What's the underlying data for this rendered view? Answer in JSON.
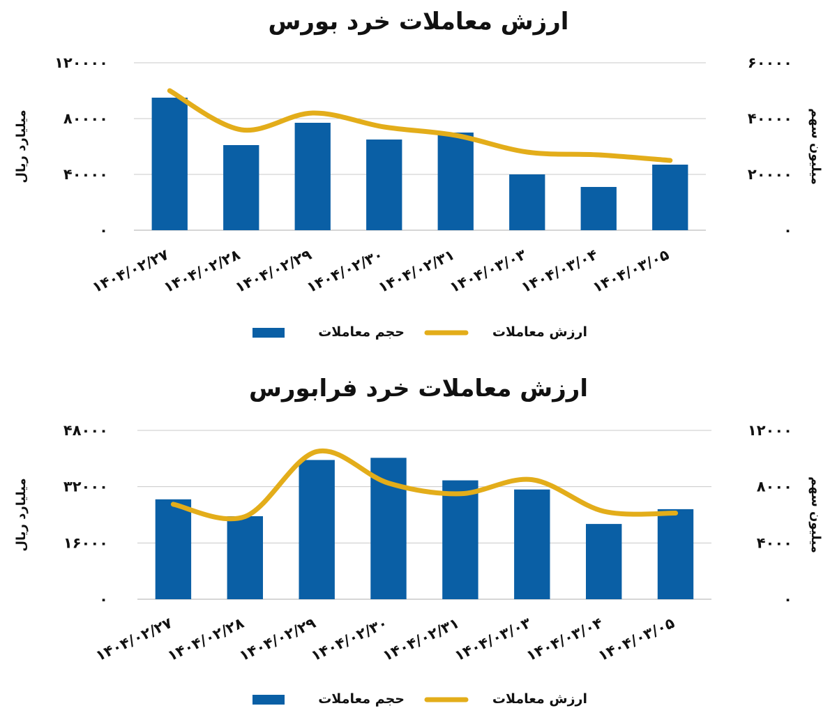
{
  "chart_data": [
    {
      "type": "bar",
      "title": "ارزش معاملات خرد بورس",
      "xlabel": "",
      "ylabel_left": "میلیارد ریال",
      "ylabel_right": "میلیون سهم",
      "categories": [
        "۱۴۰۴/۰۲/۲۷",
        "۱۴۰۴/۰۲/۲۸",
        "۱۴۰۴/۰۲/۲۹",
        "۱۴۰۴/۰۲/۳۰",
        "۱۴۰۴/۰۲/۳۱",
        "۱۴۰۴/۰۳/۰۳",
        "۱۴۰۴/۰۳/۰۴",
        "۱۴۰۴/۰۳/۰۵"
      ],
      "ylim_left": [
        0,
        120000
      ],
      "ylim_right": [
        0,
        60000
      ],
      "yticks_left": [
        "۰",
        "۴۰۰۰۰",
        "۸۰۰۰۰",
        "۱۲۰۰۰۰"
      ],
      "yticks_right": [
        "۰",
        "۲۰۰۰۰",
        "۴۰۰۰۰",
        "۶۰۰۰۰"
      ],
      "grid": true,
      "legend_position": "bottom",
      "colors": {
        "bar": "#0a5fa5",
        "line": "#e3ad1a"
      },
      "series": [
        {
          "name": "حجم معاملات",
          "type": "bar",
          "axis": "right",
          "values": [
            47500,
            30500,
            38500,
            32500,
            35000,
            20000,
            15500,
            23500
          ]
        },
        {
          "name": "ارزش معاملات",
          "type": "line",
          "axis": "left",
          "values": [
            100000,
            72000,
            84000,
            74000,
            68000,
            56000,
            54000,
            50000
          ]
        }
      ]
    },
    {
      "type": "bar",
      "title": "ارزش معاملات خرد فرابورس",
      "xlabel": "",
      "ylabel_left": "میلیارد ریال",
      "ylabel_right": "میلیون سهم",
      "categories": [
        "۱۴۰۴/۰۲/۲۷",
        "۱۴۰۴/۰۲/۲۸",
        "۱۴۰۴/۰۲/۲۹",
        "۱۴۰۴/۰۲/۳۰",
        "۱۴۰۴/۰۲/۳۱",
        "۱۴۰۴/۰۳/۰۳",
        "۱۴۰۴/۰۳/۰۴",
        "۱۴۰۴/۰۳/۰۵"
      ],
      "ylim_left": [
        0,
        48000
      ],
      "ylim_right": [
        0,
        12000
      ],
      "yticks_left": [
        "۰",
        "۱۶۰۰۰",
        "۳۲۰۰۰",
        "۴۸۰۰۰"
      ],
      "yticks_right": [
        "۰",
        "۴۰۰۰",
        "۸۰۰۰",
        "۱۲۰۰۰"
      ],
      "grid": true,
      "legend_position": "bottom",
      "colors": {
        "bar": "#0a5fa5",
        "line": "#e3ad1a"
      },
      "series": [
        {
          "name": "حجم معاملات",
          "type": "bar",
          "axis": "right",
          "values": [
            7100,
            5900,
            9900,
            10050,
            8450,
            7800,
            5350,
            6400
          ]
        },
        {
          "name": "ارزش معاملات",
          "type": "line",
          "axis": "left",
          "values": [
            27000,
            23500,
            42000,
            33000,
            30000,
            34000,
            25000,
            24500
          ]
        }
      ]
    }
  ]
}
